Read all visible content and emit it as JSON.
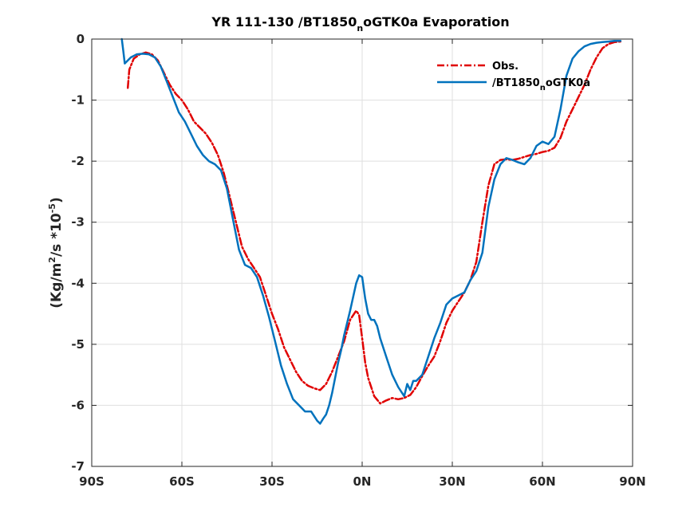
{
  "chart_data": {
    "type": "line",
    "title": {
      "main": "YR 111-130 /BT1850",
      "sub": "n",
      "rest": "oGTK0a Evaporation"
    },
    "ylabel": {
      "pre": "(Kg/m",
      "sup1": "2",
      "mid": "/s *10",
      "sup2": "-5",
      "post": ")"
    },
    "xlim": [
      -90,
      90
    ],
    "ylim": [
      -7,
      0
    ],
    "xticks": [
      -90,
      -60,
      -30,
      0,
      30,
      60,
      90
    ],
    "xtick_labels": [
      "90S",
      "60S",
      "30S",
      "0N",
      "30N",
      "60N",
      "90N"
    ],
    "yticks": [
      0,
      -1,
      -2,
      -3,
      -4,
      -5,
      -6,
      -7
    ],
    "ytick_labels": [
      "0",
      "-1",
      "-2",
      "-3",
      "-4",
      "-5",
      "-6",
      "-7"
    ],
    "grid": true,
    "legend_position": "top-right",
    "series": [
      {
        "name": "Obs.",
        "color": "#e00000",
        "dash": "dashdot",
        "x": [
          -78,
          -77.5,
          -76,
          -74,
          -72,
          -70,
          -68,
          -66,
          -64,
          -62,
          -60,
          -58,
          -56,
          -54,
          -52,
          -50,
          -48,
          -46,
          -44,
          -42,
          -40,
          -38,
          -36,
          -34,
          -32,
          -30,
          -28,
          -26,
          -24,
          -22,
          -20,
          -18,
          -16,
          -14,
          -12,
          -10,
          -8,
          -6,
          -4,
          -2,
          -1,
          0,
          1,
          2,
          4,
          6,
          8,
          10,
          12,
          14,
          16,
          18,
          20,
          22,
          24,
          26,
          28,
          30,
          32,
          34,
          36,
          38,
          40,
          42,
          44,
          46,
          48,
          50,
          52,
          54,
          56,
          58,
          60,
          62,
          64,
          66,
          68,
          70,
          72,
          74,
          76,
          78,
          80,
          82,
          84,
          86
        ],
        "y": [
          -0.8,
          -0.5,
          -0.32,
          -0.25,
          -0.22,
          -0.25,
          -0.35,
          -0.55,
          -0.75,
          -0.9,
          -1.0,
          -1.15,
          -1.35,
          -1.45,
          -1.55,
          -1.7,
          -1.9,
          -2.2,
          -2.6,
          -3.0,
          -3.4,
          -3.6,
          -3.75,
          -3.9,
          -4.2,
          -4.5,
          -4.75,
          -5.05,
          -5.25,
          -5.45,
          -5.6,
          -5.68,
          -5.72,
          -5.75,
          -5.65,
          -5.45,
          -5.2,
          -4.95,
          -4.6,
          -4.45,
          -4.52,
          -4.9,
          -5.3,
          -5.55,
          -5.85,
          -5.97,
          -5.92,
          -5.88,
          -5.9,
          -5.88,
          -5.83,
          -5.7,
          -5.52,
          -5.35,
          -5.2,
          -4.95,
          -4.65,
          -4.45,
          -4.3,
          -4.15,
          -3.95,
          -3.65,
          -3.0,
          -2.4,
          -2.05,
          -1.98,
          -1.97,
          -1.98,
          -1.96,
          -1.93,
          -1.9,
          -1.88,
          -1.85,
          -1.83,
          -1.78,
          -1.62,
          -1.35,
          -1.15,
          -0.95,
          -0.75,
          -0.5,
          -0.3,
          -0.15,
          -0.08,
          -0.05,
          -0.04
        ]
      },
      {
        "name": "/BT1850noGTK0a",
        "color": "#0072bd",
        "dash": "solid",
        "x": [
          -80,
          -79.5,
          -79,
          -77,
          -75,
          -73,
          -71,
          -69,
          -67,
          -65,
          -63,
          -61,
          -59,
          -57,
          -55,
          -53,
          -51,
          -49,
          -47,
          -45,
          -43,
          -41,
          -39,
          -37,
          -35,
          -33,
          -31,
          -29,
          -27,
          -25,
          -23,
          -21,
          -19,
          -17,
          -15,
          -14,
          -13,
          -12,
          -11,
          -10,
          -9,
          -8,
          -7,
          -6,
          -4,
          -2,
          -1,
          0,
          1,
          2,
          3,
          4,
          5,
          6,
          8,
          10,
          12,
          14,
          15,
          16,
          17,
          18,
          20,
          22,
          24,
          26,
          28,
          30,
          32,
          34,
          36,
          38,
          40,
          42,
          44,
          46,
          48,
          50,
          52,
          54,
          56,
          58,
          60,
          62,
          64,
          66,
          68,
          70,
          72,
          74,
          76,
          78,
          80,
          82,
          84,
          86
        ],
        "y": [
          0,
          -0.2,
          -0.4,
          -0.3,
          -0.25,
          -0.24,
          -0.25,
          -0.3,
          -0.45,
          -0.7,
          -0.95,
          -1.2,
          -1.35,
          -1.55,
          -1.75,
          -1.9,
          -2.0,
          -2.05,
          -2.15,
          -2.45,
          -2.95,
          -3.45,
          -3.7,
          -3.75,
          -3.9,
          -4.2,
          -4.55,
          -4.95,
          -5.35,
          -5.65,
          -5.9,
          -6.0,
          -6.1,
          -6.1,
          -6.25,
          -6.3,
          -6.22,
          -6.15,
          -6.0,
          -5.8,
          -5.55,
          -5.3,
          -5.1,
          -4.85,
          -4.45,
          -4.0,
          -3.87,
          -3.9,
          -4.25,
          -4.5,
          -4.6,
          -4.6,
          -4.7,
          -4.9,
          -5.2,
          -5.5,
          -5.7,
          -5.85,
          -5.65,
          -5.75,
          -5.6,
          -5.6,
          -5.5,
          -5.2,
          -4.9,
          -4.65,
          -4.35,
          -4.25,
          -4.2,
          -4.15,
          -3.95,
          -3.8,
          -3.5,
          -2.75,
          -2.3,
          -2.05,
          -1.95,
          -1.98,
          -2.02,
          -2.05,
          -1.95,
          -1.75,
          -1.68,
          -1.72,
          -1.6,
          -1.15,
          -0.6,
          -0.32,
          -0.2,
          -0.12,
          -0.08,
          -0.06,
          -0.05,
          -0.04,
          -0.03,
          -0.03
        ]
      }
    ]
  },
  "colors": {
    "obs": "#e00000",
    "model": "#0072bd",
    "text": "#262626"
  }
}
